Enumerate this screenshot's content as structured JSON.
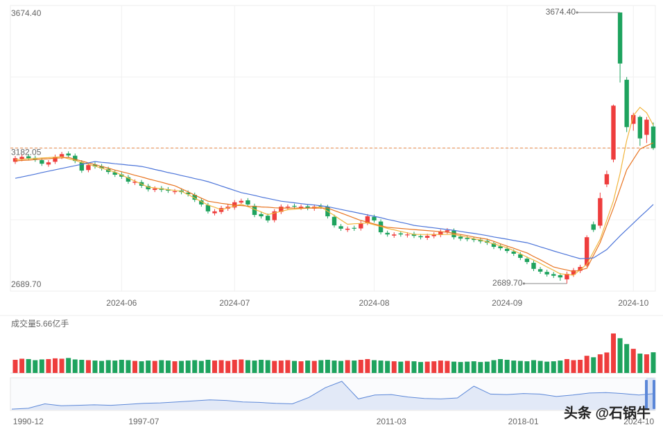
{
  "chart_data": {
    "type": "candlestick",
    "categories": [
      null,
      null,
      null,
      null,
      null,
      null,
      null,
      null,
      null,
      null,
      null,
      null,
      null,
      null,
      null,
      null,
      "2024-06",
      null,
      null,
      null,
      null,
      null,
      null,
      null,
      null,
      null,
      null,
      null,
      null,
      null,
      null,
      null,
      null,
      "2024-07",
      null,
      null,
      null,
      null,
      null,
      null,
      null,
      null,
      null,
      null,
      null,
      null,
      null,
      null,
      null,
      null,
      null,
      null,
      null,
      null,
      "2024-08",
      null,
      null,
      null,
      null,
      null,
      null,
      null,
      null,
      null,
      null,
      null,
      null,
      null,
      null,
      null,
      null,
      null,
      null,
      null,
      "2024-09",
      null,
      null,
      null,
      null,
      null,
      null,
      null,
      null,
      null,
      null,
      null,
      null,
      null,
      null,
      null,
      null,
      null,
      null,
      "2024-10",
      null,
      null,
      null
    ],
    "open": [
      3132,
      3142,
      3152,
      3146,
      3138,
      3122,
      3132,
      3150,
      3162,
      3154,
      3130,
      3102,
      3122,
      3116,
      3106,
      3094,
      3086,
      3076,
      3056,
      3058,
      3044,
      3030,
      3036,
      3032,
      3022,
      3028,
      3020,
      3012,
      2992,
      2975,
      2945,
      2950,
      2962,
      2966,
      2984,
      2992,
      2972,
      2942,
      2936,
      2920,
      2950,
      2966,
      2972,
      2965,
      2970,
      2962,
      2972,
      2968,
      2932,
      2898,
      2885,
      2892,
      2890,
      2910,
      2932,
      2915,
      2874,
      2864,
      2872,
      2865,
      2870,
      2862,
      2856,
      2862,
      2866,
      2878,
      2882,
      2860,
      2855,
      2852,
      2849,
      2845,
      2836,
      2825,
      2816,
      2806,
      2796,
      2780,
      2765,
      2742,
      2732,
      2724,
      2720,
      2705,
      2722,
      2736,
      2755,
      2905,
      2900,
      3050,
      3140,
      3674.4,
      3430,
      3270,
      3295,
      3230,
      3260
    ],
    "high": [
      3153,
      3158,
      3160,
      3154,
      3146,
      3138,
      3158,
      3168,
      3170,
      3162,
      3138,
      3128,
      3130,
      3124,
      3114,
      3102,
      3094,
      3084,
      3068,
      3066,
      3052,
      3043,
      3044,
      3040,
      3033,
      3036,
      3028,
      3020,
      3000,
      2983,
      2960,
      2972,
      2977,
      2993,
      2998,
      3000,
      2980,
      2950,
      2944,
      2960,
      2977,
      2977,
      2980,
      2977,
      2978,
      2977,
      2980,
      2976,
      2940,
      2906,
      2897,
      2900,
      2917,
      2942,
      2940,
      2923,
      2882,
      2876,
      2880,
      2876,
      2878,
      2870,
      2871,
      2876,
      2886,
      2891,
      2890,
      2868,
      2863,
      2860,
      2857,
      2853,
      2844,
      2833,
      2824,
      2814,
      2804,
      2788,
      2773,
      2750,
      2740,
      2732,
      2728,
      2733,
      2746,
      2758,
      2865,
      2915,
      3020,
      3100,
      3340,
      3674.4,
      3440,
      3310,
      3300,
      3295,
      3275
    ],
    "low": [
      3124,
      3134,
      3137,
      3132,
      3117,
      3114,
      3124,
      3142,
      3147,
      3127,
      3092,
      3094,
      3107,
      3100,
      3087,
      3077,
      3070,
      3052,
      3048,
      3037,
      3024,
      3022,
      3022,
      3019,
      3014,
      3014,
      3006,
      2986,
      2969,
      2944,
      2937,
      2942,
      2954,
      2958,
      2976,
      2969,
      2931,
      2926,
      2911,
      2912,
      2942,
      2958,
      2961,
      2957,
      2956,
      2954,
      2961,
      2926,
      2893,
      2881,
      2877,
      2881,
      2882,
      2902,
      2911,
      2868,
      2860,
      2856,
      2860,
      2857,
      2855,
      2850,
      2848,
      2854,
      2858,
      2870,
      2850,
      2845,
      2843,
      2840,
      2835,
      2830,
      2815,
      2810,
      2800,
      2790,
      2775,
      2760,
      2735,
      2725,
      2715,
      2710,
      2700,
      2689.7,
      2714,
      2728,
      2750,
      2877,
      2890,
      3040,
      3130,
      3420,
      3240,
      3245,
      3190,
      3200,
      3175
    ],
    "close": [
      3145,
      3150,
      3145,
      3140,
      3125,
      3130,
      3150,
      3160,
      3155,
      3135,
      3100,
      3120,
      3115,
      3108,
      3095,
      3085,
      3078,
      3060,
      3060,
      3045,
      3032,
      3035,
      3030,
      3027,
      3025,
      3022,
      3014,
      2994,
      2977,
      2952,
      2952,
      2964,
      2969,
      2985,
      2990,
      2977,
      2939,
      2934,
      2919,
      2952,
      2969,
      2969,
      2969,
      2969,
      2964,
      2969,
      2969,
      2934,
      2901,
      2889,
      2889,
      2889,
      2909,
      2934,
      2919,
      2876,
      2868,
      2868,
      2868,
      2868,
      2863,
      2858,
      2863,
      2868,
      2878,
      2883,
      2858,
      2853,
      2851,
      2848,
      2843,
      2838,
      2823,
      2818,
      2808,
      2798,
      2783,
      2768,
      2743,
      2733,
      2723,
      2718,
      2712,
      2725,
      2738,
      2750,
      2858,
      2885,
      3000,
      3087,
      3336,
      3489,
      3258,
      3302,
      3217,
      3285,
      3182.05
    ],
    "up_color": "#ee3d3d",
    "down_color": "#1ea35e",
    "ylim": [
      2662,
      3699.6
    ],
    "yticks": [
      {
        "value": 3674.4,
        "label": "3674.40"
      },
      {
        "value": 2689.7,
        "label": "2689.70"
      }
    ],
    "price_line": {
      "value": 3182.05,
      "label": "3182.05",
      "color": "#e8894a"
    },
    "annotations": [
      {
        "value": 3674.4,
        "label": "3674.40"
      },
      {
        "value": 2689.7,
        "label": "2689.70"
      }
    ],
    "grid": true,
    "series": [
      {
        "color": "#f2b53d",
        "values": [
          3140,
          3141,
          3143,
          3144,
          3146,
          3147,
          3149,
          3150,
          3143,
          3137,
          3130,
          3123,
          3116,
          3109,
          3102,
          3095,
          3084,
          3073,
          3062,
          3051,
          3040,
          3037,
          3034,
          3031,
          3028,
          3025,
          3013,
          3000,
          2988,
          2975,
          2967,
          2958,
          2965,
          2971,
          2978,
          2969,
          2959,
          2950,
          2940,
          2946,
          2952,
          2958,
          2960,
          2962,
          2964,
          2966,
          2968,
          2952,
          2937,
          2921,
          2905,
          2907,
          2908,
          2910,
          2903,
          2897,
          2890,
          2885,
          2879,
          2874,
          2868,
          2868,
          2868,
          2868,
          2868,
          2868,
          2868,
          2863,
          2858,
          2853,
          2848,
          2841,
          2834,
          2827,
          2820,
          2809,
          2798,
          2786,
          2775,
          2763,
          2750,
          2738,
          2725,
          2723,
          2720,
          2740,
          2760,
          2805,
          2850,
          2920,
          2990,
          3090,
          3210,
          3300,
          3330,
          3310,
          3265
        ]
      },
      {
        "color": "#e8731f",
        "values": [
          3135,
          3137,
          3138,
          3140,
          3142,
          3143,
          3145,
          3146,
          3148,
          3141,
          3135,
          3128,
          3122,
          3115,
          3109,
          3102,
          3096,
          3090,
          3083,
          3077,
          3070,
          3064,
          3058,
          3051,
          3045,
          3034,
          3023,
          3011,
          3000,
          2989,
          2985,
          2981,
          2978,
          2974,
          2973,
          2971,
          2970,
          2968,
          2967,
          2965,
          2964,
          2964,
          2964,
          2964,
          2964,
          2964,
          2964,
          2964,
          2955,
          2946,
          2937,
          2928,
          2919,
          2913,
          2906,
          2900,
          2894,
          2892,
          2890,
          2888,
          2886,
          2884,
          2882,
          2880,
          2878,
          2876,
          2872,
          2868,
          2864,
          2859,
          2855,
          2851,
          2843,
          2834,
          2826,
          2818,
          2809,
          2801,
          2788,
          2776,
          2763,
          2750,
          2744,
          2739,
          2733,
          2739,
          2745,
          2792,
          2838,
          2901,
          2964,
          3034,
          3103,
          3141,
          3178,
          3190,
          3201
        ]
      },
      {
        "color": "#4b74d9",
        "values": [
          3072,
          3077,
          3082,
          3087,
          3093,
          3098,
          3103,
          3108,
          3113,
          3118,
          3123,
          3128,
          3133,
          3130,
          3128,
          3125,
          3123,
          3120,
          3118,
          3115,
          3110,
          3104,
          3099,
          3093,
          3088,
          3082,
          3077,
          3071,
          3066,
          3060,
          3052,
          3044,
          3036,
          3028,
          3020,
          3015,
          3010,
          3004,
          2999,
          2994,
          2989,
          2986,
          2983,
          2980,
          2977,
          2975,
          2972,
          2969,
          2964,
          2959,
          2954,
          2949,
          2944,
          2939,
          2934,
          2929,
          2923,
          2918,
          2912,
          2907,
          2901,
          2898,
          2895,
          2892,
          2889,
          2886,
          2883,
          2879,
          2875,
          2872,
          2868,
          2864,
          2859,
          2855,
          2851,
          2846,
          2842,
          2838,
          2831,
          2823,
          2816,
          2808,
          2801,
          2794,
          2787,
          2780,
          2781,
          2783,
          2798,
          2813,
          2838,
          2863,
          2886,
          2909,
          2932,
          2954,
          2977
        ]
      }
    ],
    "volume_label": "成交量5.66亿手",
    "volume_ylim": [
      0,
      12.5
    ],
    "volume": [
      3.6,
      3.9,
      3.8,
      3.5,
      3.7,
      3.8,
      4.0,
      3.9,
      4.1,
      3.7,
      3.6,
      3.5,
      3.4,
      3.3,
      3.5,
      3.4,
      3.6,
      3.5,
      3.3,
      3.2,
      3.4,
      3.3,
      3.5,
      3.4,
      3.2,
      3.3,
      3.4,
      3.5,
      3.3,
      3.6,
      3.4,
      3.5,
      3.3,
      3.6,
      3.7,
      3.5,
      3.4,
      3.6,
      3.5,
      3.3,
      3.4,
      3.5,
      3.3,
      3.2,
      3.4,
      3.3,
      3.5,
      3.6,
      3.4,
      3.3,
      3.5,
      3.4,
      3.6,
      3.8,
      3.5,
      3.4,
      3.3,
      3.2,
      3.1,
      3.3,
      3.2,
      3.0,
      3.1,
      3.2,
      3.4,
      3.3,
      3.1,
      3.0,
      3.1,
      3.2,
      3.0,
      3.1,
      3.5,
      3.8,
      3.6,
      3.4,
      3.3,
      3.2,
      3.5,
      3.3,
      3.1,
      3.2,
      3.4,
      3.8,
      3.5,
      3.6,
      4.7,
      4.3,
      5.1,
      5.6,
      10.8,
      9.5,
      7.9,
      6.6,
      5.3,
      5.1,
      5.66
    ],
    "navigator": {
      "color": "#5b87d8",
      "ylim": [
        0,
        6500
      ],
      "categories": [
        null,
        "1990-12",
        null,
        null,
        null,
        null,
        null,
        null,
        "1997-07",
        null,
        null,
        null,
        null,
        null,
        null,
        null,
        null,
        null,
        null,
        null,
        null,
        null,
        null,
        "2011-03",
        null,
        null,
        null,
        null,
        null,
        null,
        null,
        "2018-01",
        null,
        null,
        null,
        null,
        null,
        null,
        "2024-10",
        null
      ],
      "values": [
        130,
        300,
        1200,
        800,
        900,
        1000,
        900,
        1100,
        1300,
        1400,
        1600,
        1800,
        2000,
        1900,
        1600,
        1500,
        1300,
        1200,
        2500,
        4500,
        5800,
        2200,
        3000,
        3100,
        2600,
        2300,
        2200,
        2400,
        4800,
        3200,
        3100,
        3300,
        3200,
        2700,
        3000,
        3400,
        3500,
        3300,
        3000,
        3300
      ]
    },
    "watermark": "头条 @石锅牛"
  }
}
